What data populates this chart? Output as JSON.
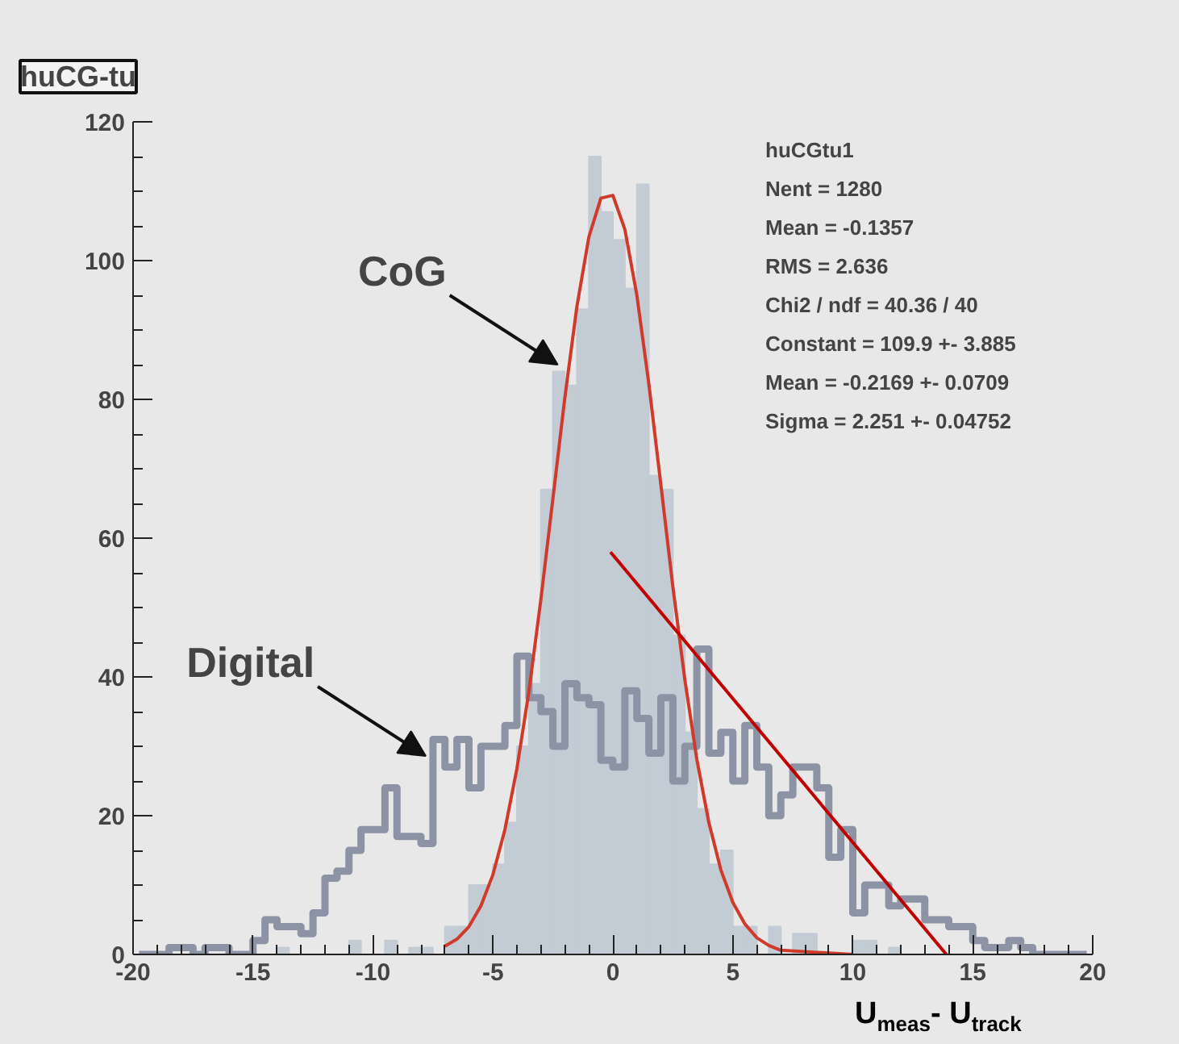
{
  "chart_data": {
    "type": "histogram",
    "title": "huCG-tu",
    "xlabel": "U$_{meas}$- U$_{track}$",
    "bins": [
      -20,
      -19.5,
      -19,
      -18.5,
      -18,
      -17.5,
      -17,
      -16.5,
      -16,
      -15.5,
      -15,
      -14.5,
      -14,
      -13.5,
      -13,
      -12.5,
      -12,
      -11.5,
      -11,
      -10.5,
      -10,
      -9.5,
      -9,
      -8.5,
      -8,
      -7.5,
      -7,
      -6.5,
      -6,
      -5.5,
      -5,
      -4.5,
      -4,
      -3.5,
      -3,
      -2.5,
      -2,
      -1.5,
      -1,
      -0.5,
      0,
      0.5,
      1,
      1.5,
      2,
      2.5,
      3,
      3.5,
      4,
      4.5,
      5,
      5.5,
      6,
      6.5,
      7,
      7.5,
      8,
      8.5,
      9,
      9.5,
      10,
      10.5,
      11,
      11.5,
      12,
      12.5,
      13,
      13.5,
      14,
      14.5,
      15,
      15.5,
      16,
      16.5,
      17,
      17.5,
      18,
      18.5,
      19,
      19.5,
      20
    ],
    "series": [
      {
        "color": "#c3cbd4",
        "values": [
          0,
          0,
          0,
          0,
          0,
          0,
          0,
          0,
          0,
          0,
          0,
          0,
          1,
          0,
          0,
          0,
          0,
          0,
          2,
          0,
          0,
          2,
          0,
          1,
          1,
          0,
          4,
          4,
          10,
          10,
          13,
          19,
          30,
          39,
          67,
          84,
          82,
          93,
          115,
          107,
          103,
          96,
          111,
          69,
          67,
          46,
          32,
          21,
          13,
          15,
          4,
          4,
          0,
          4,
          0,
          3,
          3,
          0,
          0,
          0,
          2,
          2,
          0,
          1,
          0,
          0,
          0,
          0,
          0,
          0,
          0,
          0,
          0,
          0,
          0,
          0,
          0,
          0,
          0,
          0
        ]
      },
      {
        "type": "step",
        "color": "#8b93a5",
        "x": [
          -19.75,
          -19.25,
          -18.75,
          -18.25,
          -17.75,
          -17.25,
          -16.75,
          -16.25,
          -15.75,
          -15.25,
          -14.75,
          -14.25,
          -13.75,
          -13.25,
          -12.75,
          -12.25,
          -11.75,
          -11.25,
          -10.75,
          -10.25,
          -9.75,
          -9.25,
          -8.75,
          -8.25,
          -7.75,
          -7.25,
          -6.75,
          -6.25,
          -5.75,
          -5.25,
          -4.75,
          -4.25,
          -3.75,
          -3.25,
          -2.75,
          -2.25,
          -1.75,
          -1.25,
          -0.75,
          -0.25,
          0.25,
          0.75,
          1.25,
          1.75,
          2.25,
          2.75,
          3.25,
          3.75,
          4.25,
          4.75,
          5.25,
          5.75,
          6.25,
          6.75,
          7.25,
          7.75,
          8.25,
          8.75,
          9.25,
          9.75,
          10.25,
          10.75,
          11.25,
          11.75,
          12.25,
          12.75,
          13.25,
          13.75,
          14.25,
          14.75,
          15.25,
          15.75,
          16.25,
          16.75,
          17.25,
          17.75,
          18.25,
          18.75,
          19.25,
          19.75
        ],
        "values": [
          0,
          0,
          0,
          1,
          1,
          0,
          1,
          1,
          0,
          0,
          2,
          5,
          4,
          4,
          3,
          6,
          11,
          12,
          15,
          18,
          18,
          24,
          17,
          17,
          16,
          31,
          27,
          31,
          24,
          30,
          30,
          33,
          43,
          37,
          35,
          30,
          39,
          37,
          36,
          28,
          27,
          38,
          34,
          29,
          37,
          25,
          30,
          44,
          29,
          32,
          25,
          33,
          27,
          20,
          23,
          27,
          27,
          24,
          14,
          18,
          6,
          10,
          10,
          7,
          8,
          8,
          5,
          5,
          4,
          4,
          2,
          1,
          1,
          2,
          1,
          0,
          0,
          0,
          0,
          0
        ]
      },
      {
        "type": "line",
        "color": "#d03a2a",
        "x": [
          -7,
          -6.5,
          -6,
          -5.5,
          -5,
          -4.5,
          -4,
          -3.5,
          -3,
          -2.5,
          -2,
          -1.5,
          -1,
          -0.5,
          0,
          0.5,
          1,
          1.5,
          2,
          2.5,
          3,
          3.5,
          4,
          4.5,
          5,
          5.5,
          6,
          6.5,
          7,
          10
        ],
        "values": [
          1.2,
          2.2,
          4,
          7,
          11.5,
          18,
          26.8,
          37.9,
          51.2,
          65.7,
          80.3,
          93.4,
          103.4,
          109,
          109.4,
          104.5,
          95,
          82.2,
          67.7,
          53,
          39.6,
          28.1,
          19,
          12.2,
          7.5,
          4.4,
          2.4,
          1.3,
          0.6,
          0
        ]
      },
      {
        "type": "line",
        "color": "#c00000",
        "x": [
          -0.1,
          13.9
        ],
        "values": [
          58,
          0
        ]
      }
    ],
    "xlim": [
      -20,
      20
    ],
    "ylim": [
      0,
      120
    ],
    "xticks": [
      -20,
      -15,
      -10,
      -5,
      0,
      5,
      10,
      15,
      20
    ],
    "yticks": [
      0,
      20,
      40,
      60,
      80,
      100,
      120
    ],
    "annotations": [
      {
        "text": "CoG",
        "x": -2.3,
        "y": 85
      },
      {
        "text": "Digital",
        "x": -7.8,
        "y": 28.6
      },
      "huCGtu1",
      "Nent = 1280",
      "Mean  = -0.1357",
      "RMS   =  2.636",
      "Chi2 / ndf = 40.36 / 40",
      "Constant = 109.9 +- 3.885",
      "Mean     = -0.2169 +- 0.0709",
      "Sigma    = 2.251 +- 0.04752"
    ]
  }
}
